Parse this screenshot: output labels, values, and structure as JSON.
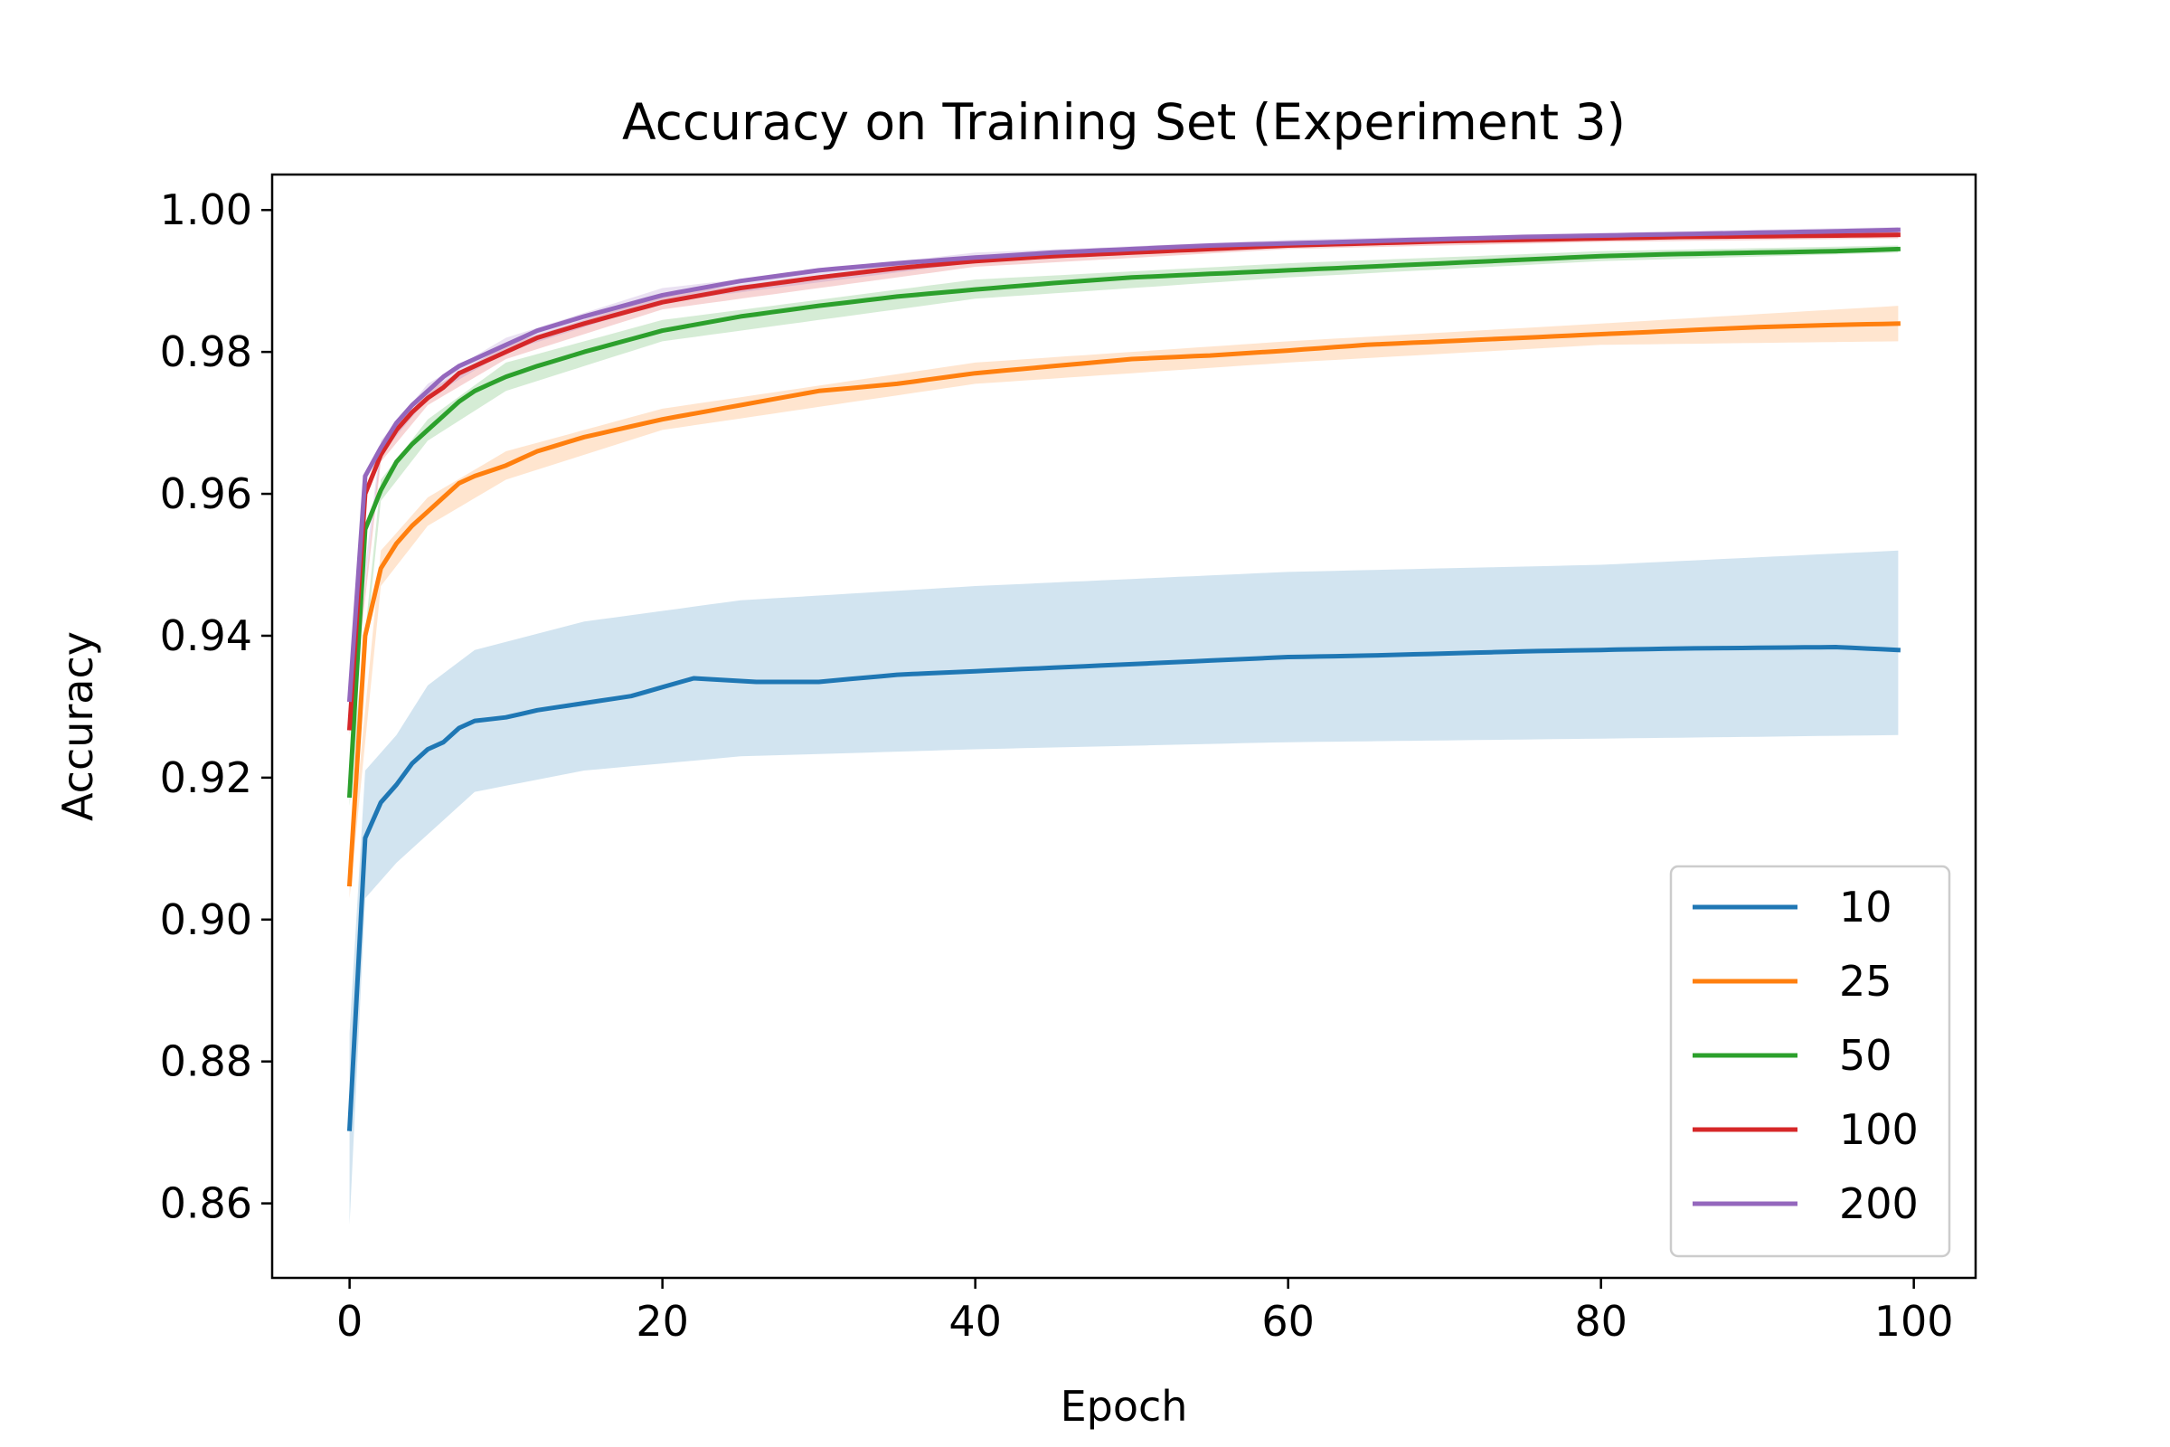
{
  "chart_data": {
    "type": "line",
    "title": "Accuracy on Training Set (Experiment 3)",
    "xlabel": "Epoch",
    "ylabel": "Accuracy",
    "xlim": [
      -4.95,
      103.95
    ],
    "ylim": [
      0.8495,
      1.005
    ],
    "xticks": [
      0,
      20,
      40,
      60,
      80,
      100
    ],
    "yticks": [
      0.86,
      0.88,
      0.9,
      0.92,
      0.94,
      0.96,
      0.98,
      1.0
    ],
    "xtick_labels": [
      "0",
      "20",
      "40",
      "60",
      "80",
      "100"
    ],
    "ytick_labels": [
      "0.86",
      "0.88",
      "0.90",
      "0.92",
      "0.94",
      "0.96",
      "0.98",
      "1.00"
    ],
    "grid": false,
    "legend_position": "lower right",
    "x_start": 0,
    "x_end": 99,
    "shaded_band": true,
    "series": [
      {
        "name": "10",
        "color": "#1f77b4",
        "knots": [
          [
            0,
            0.8705
          ],
          [
            1,
            0.9115
          ],
          [
            2,
            0.9165
          ],
          [
            3,
            0.919
          ],
          [
            4,
            0.922
          ],
          [
            5,
            0.924
          ],
          [
            6,
            0.925
          ],
          [
            7,
            0.927
          ],
          [
            8,
            0.928
          ],
          [
            10,
            0.9285
          ],
          [
            12,
            0.9295
          ],
          [
            15,
            0.9305
          ],
          [
            18,
            0.9315
          ],
          [
            22,
            0.934
          ],
          [
            26,
            0.9335
          ],
          [
            30,
            0.9335
          ],
          [
            35,
            0.9345
          ],
          [
            40,
            0.935
          ],
          [
            45,
            0.9355
          ],
          [
            50,
            0.936
          ],
          [
            55,
            0.9365
          ],
          [
            60,
            0.937
          ],
          [
            65,
            0.9372
          ],
          [
            70,
            0.9375
          ],
          [
            75,
            0.9378
          ],
          [
            80,
            0.938
          ],
          [
            85,
            0.9382
          ],
          [
            90,
            0.9383
          ],
          [
            95,
            0.9384
          ],
          [
            99,
            0.938
          ]
        ],
        "band_lower": [
          [
            0,
            0.857
          ],
          [
            1,
            0.903
          ],
          [
            3,
            0.908
          ],
          [
            5,
            0.912
          ],
          [
            8,
            0.918
          ],
          [
            15,
            0.921
          ],
          [
            25,
            0.923
          ],
          [
            40,
            0.924
          ],
          [
            60,
            0.925
          ],
          [
            80,
            0.9255
          ],
          [
            99,
            0.926
          ]
        ],
        "band_upper": [
          [
            0,
            0.884
          ],
          [
            1,
            0.921
          ],
          [
            3,
            0.926
          ],
          [
            5,
            0.933
          ],
          [
            8,
            0.938
          ],
          [
            15,
            0.942
          ],
          [
            25,
            0.945
          ],
          [
            40,
            0.947
          ],
          [
            60,
            0.949
          ],
          [
            80,
            0.95
          ],
          [
            99,
            0.952
          ]
        ]
      },
      {
        "name": "25",
        "color": "#ff7f0e",
        "knots": [
          [
            0,
            0.905
          ],
          [
            1,
            0.94
          ],
          [
            2,
            0.9495
          ],
          [
            3,
            0.953
          ],
          [
            4,
            0.9555
          ],
          [
            5,
            0.9575
          ],
          [
            6,
            0.9595
          ],
          [
            7,
            0.9615
          ],
          [
            8,
            0.9625
          ],
          [
            10,
            0.964
          ],
          [
            12,
            0.966
          ],
          [
            15,
            0.968
          ],
          [
            20,
            0.9705
          ],
          [
            25,
            0.9725
          ],
          [
            30,
            0.9745
          ],
          [
            35,
            0.9755
          ],
          [
            40,
            0.977
          ],
          [
            45,
            0.978
          ],
          [
            50,
            0.979
          ],
          [
            55,
            0.9795
          ],
          [
            60,
            0.9802
          ],
          [
            65,
            0.981
          ],
          [
            70,
            0.9815
          ],
          [
            75,
            0.982
          ],
          [
            80,
            0.9825
          ],
          [
            85,
            0.983
          ],
          [
            90,
            0.9835
          ],
          [
            95,
            0.9838
          ],
          [
            99,
            0.984
          ]
        ],
        "band_lower": [
          [
            0,
            0.903
          ],
          [
            2,
            0.947
          ],
          [
            5,
            0.9555
          ],
          [
            10,
            0.962
          ],
          [
            20,
            0.969
          ],
          [
            40,
            0.9755
          ],
          [
            60,
            0.9785
          ],
          [
            80,
            0.981
          ],
          [
            99,
            0.9815
          ]
        ],
        "band_upper": [
          [
            0,
            0.907
          ],
          [
            2,
            0.952
          ],
          [
            5,
            0.9595
          ],
          [
            10,
            0.966
          ],
          [
            20,
            0.972
          ],
          [
            40,
            0.9785
          ],
          [
            60,
            0.9815
          ],
          [
            80,
            0.984
          ],
          [
            99,
            0.9865
          ]
        ]
      },
      {
        "name": "50",
        "color": "#2ca02c",
        "knots": [
          [
            0,
            0.9175
          ],
          [
            1,
            0.955
          ],
          [
            2,
            0.9605
          ],
          [
            3,
            0.9645
          ],
          [
            4,
            0.967
          ],
          [
            5,
            0.969
          ],
          [
            6,
            0.971
          ],
          [
            7,
            0.973
          ],
          [
            8,
            0.9745
          ],
          [
            10,
            0.9765
          ],
          [
            12,
            0.978
          ],
          [
            15,
            0.98
          ],
          [
            20,
            0.983
          ],
          [
            25,
            0.985
          ],
          [
            30,
            0.9865
          ],
          [
            35,
            0.9878
          ],
          [
            40,
            0.9888
          ],
          [
            45,
            0.9897
          ],
          [
            50,
            0.9905
          ],
          [
            55,
            0.991
          ],
          [
            60,
            0.9915
          ],
          [
            65,
            0.992
          ],
          [
            70,
            0.9925
          ],
          [
            75,
            0.993
          ],
          [
            80,
            0.9935
          ],
          [
            85,
            0.9938
          ],
          [
            90,
            0.994
          ],
          [
            95,
            0.9942
          ],
          [
            99,
            0.9945
          ]
        ],
        "band_lower": [
          [
            0,
            0.916
          ],
          [
            2,
            0.959
          ],
          [
            5,
            0.9675
          ],
          [
            10,
            0.9745
          ],
          [
            20,
            0.9815
          ],
          [
            40,
            0.9875
          ],
          [
            60,
            0.9905
          ],
          [
            80,
            0.9928
          ],
          [
            99,
            0.994
          ]
        ],
        "band_upper": [
          [
            0,
            0.919
          ],
          [
            2,
            0.962
          ],
          [
            5,
            0.9705
          ],
          [
            10,
            0.9785
          ],
          [
            20,
            0.9845
          ],
          [
            40,
            0.9902
          ],
          [
            60,
            0.9925
          ],
          [
            80,
            0.9942
          ],
          [
            99,
            0.995
          ]
        ]
      },
      {
        "name": "100",
        "color": "#d62728",
        "knots": [
          [
            0,
            0.927
          ],
          [
            1,
            0.96
          ],
          [
            2,
            0.9655
          ],
          [
            3,
            0.969
          ],
          [
            4,
            0.9715
          ],
          [
            5,
            0.9735
          ],
          [
            6,
            0.975
          ],
          [
            7,
            0.977
          ],
          [
            8,
            0.978
          ],
          [
            10,
            0.98
          ],
          [
            12,
            0.982
          ],
          [
            15,
            0.984
          ],
          [
            20,
            0.987
          ],
          [
            25,
            0.989
          ],
          [
            30,
            0.9905
          ],
          [
            35,
            0.9918
          ],
          [
            40,
            0.9928
          ],
          [
            45,
            0.9935
          ],
          [
            50,
            0.994
          ],
          [
            55,
            0.9945
          ],
          [
            60,
            0.995
          ],
          [
            65,
            0.9953
          ],
          [
            70,
            0.9956
          ],
          [
            75,
            0.9958
          ],
          [
            80,
            0.996
          ],
          [
            85,
            0.9962
          ],
          [
            90,
            0.9963
          ],
          [
            95,
            0.9964
          ],
          [
            99,
            0.9965
          ]
        ],
        "band_lower": [
          [
            0,
            0.926
          ],
          [
            2,
            0.9645
          ],
          [
            5,
            0.9725
          ],
          [
            10,
            0.979
          ],
          [
            20,
            0.986
          ],
          [
            40,
            0.992
          ],
          [
            60,
            0.9945
          ],
          [
            80,
            0.9955
          ],
          [
            99,
            0.996
          ]
        ],
        "band_upper": [
          [
            0,
            0.928
          ],
          [
            2,
            0.9665
          ],
          [
            5,
            0.9745
          ],
          [
            10,
            0.981
          ],
          [
            20,
            0.988
          ],
          [
            40,
            0.9936
          ],
          [
            60,
            0.9955
          ],
          [
            80,
            0.9965
          ],
          [
            99,
            0.997
          ]
        ]
      },
      {
        "name": "200",
        "color": "#9467bd",
        "knots": [
          [
            0,
            0.931
          ],
          [
            1,
            0.9625
          ],
          [
            2,
            0.9665
          ],
          [
            3,
            0.97
          ],
          [
            4,
            0.9725
          ],
          [
            5,
            0.9745
          ],
          [
            6,
            0.9765
          ],
          [
            7,
            0.978
          ],
          [
            8,
            0.979
          ],
          [
            10,
            0.981
          ],
          [
            12,
            0.983
          ],
          [
            15,
            0.985
          ],
          [
            20,
            0.988
          ],
          [
            25,
            0.99
          ],
          [
            30,
            0.9915
          ],
          [
            35,
            0.9925
          ],
          [
            40,
            0.9933
          ],
          [
            45,
            0.994
          ],
          [
            50,
            0.9945
          ],
          [
            55,
            0.995
          ],
          [
            60,
            0.9953
          ],
          [
            65,
            0.9956
          ],
          [
            70,
            0.9959
          ],
          [
            75,
            0.9962
          ],
          [
            80,
            0.9964
          ],
          [
            85,
            0.9966
          ],
          [
            90,
            0.9968
          ],
          [
            95,
            0.997
          ],
          [
            99,
            0.9972
          ]
        ],
        "band_lower": [
          [
            0,
            0.93
          ],
          [
            2,
            0.9655
          ],
          [
            5,
            0.9735
          ],
          [
            10,
            0.98
          ],
          [
            20,
            0.987
          ],
          [
            40,
            0.9926
          ],
          [
            60,
            0.9948
          ],
          [
            80,
            0.996
          ],
          [
            99,
            0.9967
          ]
        ],
        "band_upper": [
          [
            0,
            0.932
          ],
          [
            2,
            0.9675
          ],
          [
            5,
            0.9755
          ],
          [
            10,
            0.982
          ],
          [
            20,
            0.989
          ],
          [
            40,
            0.994
          ],
          [
            60,
            0.9958
          ],
          [
            80,
            0.9968
          ],
          [
            99,
            0.9976
          ]
        ]
      }
    ]
  }
}
